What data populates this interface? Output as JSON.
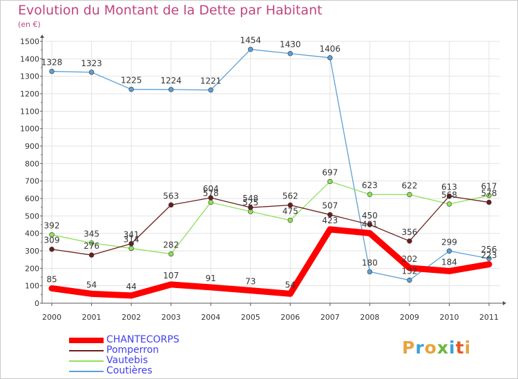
{
  "title": "Evolution du Montant de la Dette par Habitant",
  "unit": "(en €)",
  "logo": {
    "text": "Proxiti",
    "colors": [
      "#e8a33d",
      "#3aa0d8",
      "#e8a33d",
      "#69b83c",
      "#3aa0d8",
      "#e05a26",
      "#e8a33d"
    ]
  },
  "chart_data": {
    "type": "line",
    "x": [
      "2000",
      "2001",
      "2002",
      "2003",
      "2004",
      "2005",
      "2006",
      "2007",
      "2008",
      "2009",
      "2010",
      "2011"
    ],
    "ylim": [
      0,
      1500
    ],
    "yticks": [
      0,
      100,
      200,
      300,
      400,
      500,
      600,
      700,
      800,
      900,
      1000,
      1100,
      1200,
      1300,
      1400,
      1500
    ],
    "grid": true,
    "series": [
      {
        "name": "Coutières",
        "color": "#5b9fd6",
        "values": [
          1328,
          1323,
          1225,
          1224,
          1221,
          1454,
          1430,
          1406,
          180,
          132,
          299,
          256
        ]
      },
      {
        "name": "Vautebis",
        "color": "#8fe05a",
        "values": [
          392,
          345,
          314,
          282,
          578,
          525,
          475,
          697,
          623,
          622,
          568,
          617
        ]
      },
      {
        "name": "Pomperron",
        "color": "#6b1d1d",
        "values": [
          309,
          276,
          341,
          563,
          604,
          548,
          562,
          507,
          450,
          356,
          613,
          578
        ]
      },
      {
        "name": "CHANTECORPS",
        "color": "#ff0000",
        "values": [
          85,
          54,
          44,
          107,
          91,
          73,
          54,
          423,
          401,
          202,
          184,
          223
        ]
      }
    ]
  }
}
